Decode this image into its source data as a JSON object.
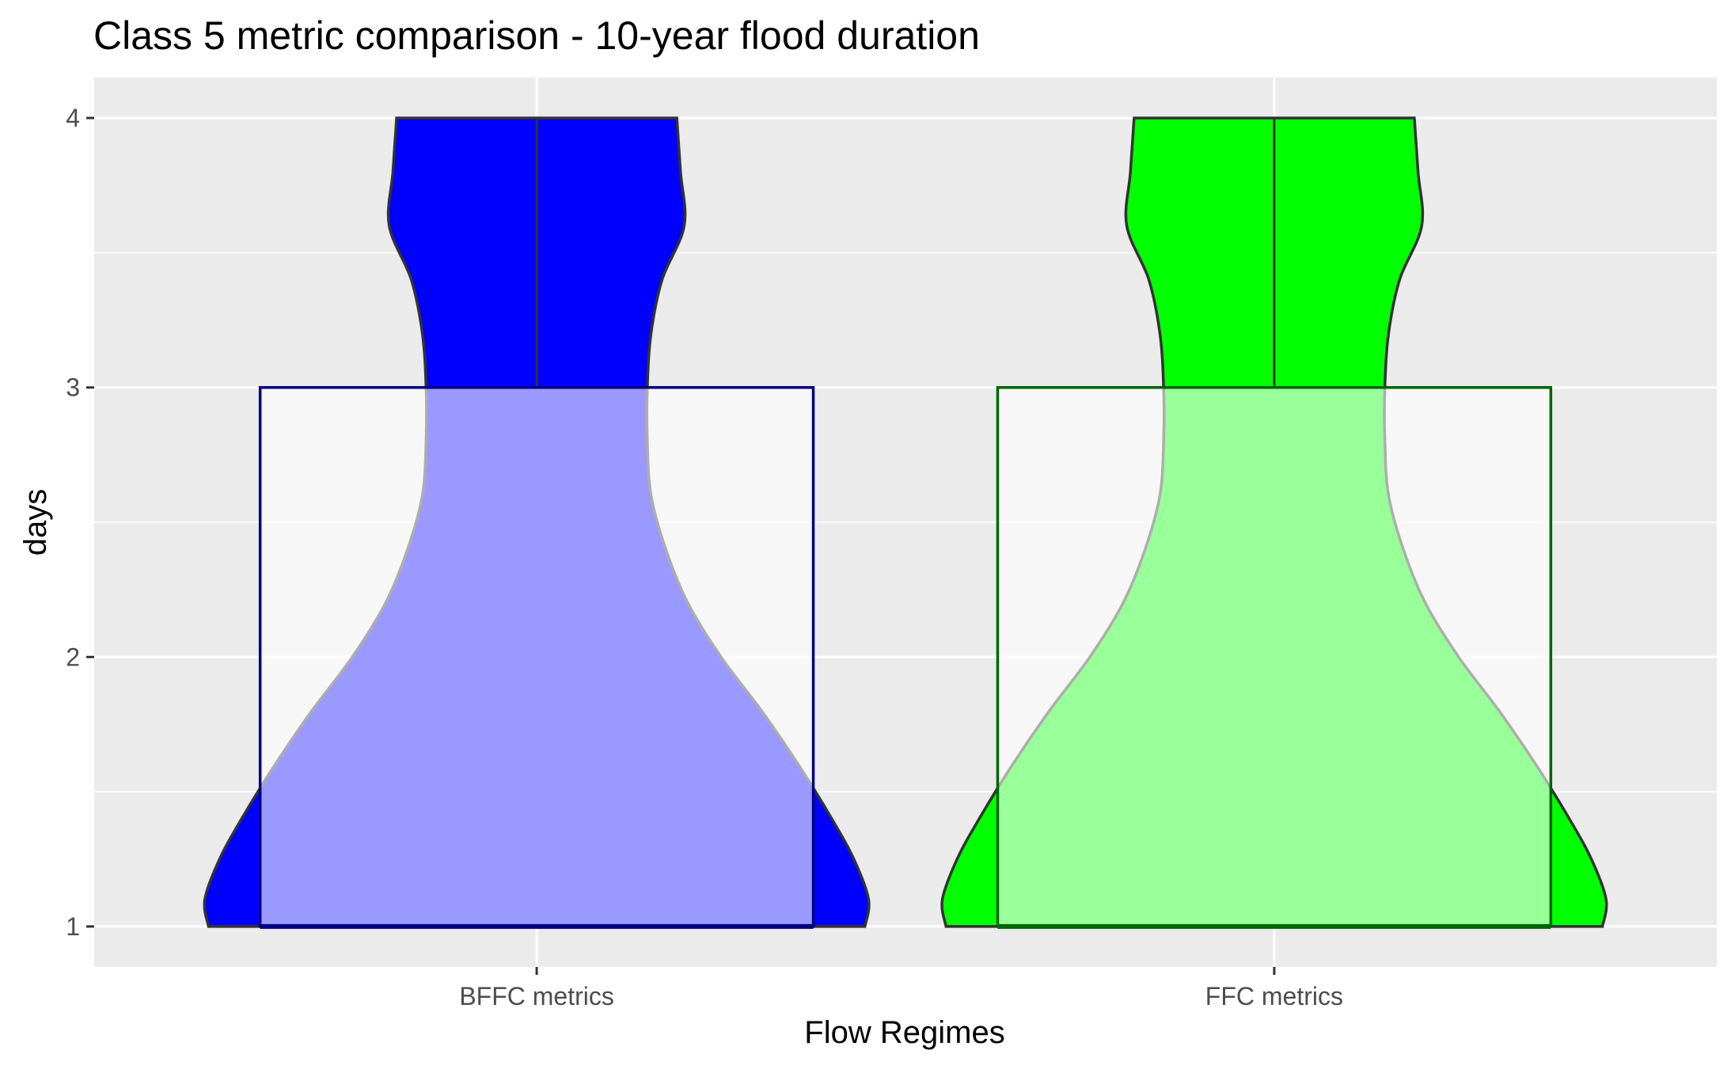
{
  "chart_data": {
    "type": "violin",
    "title": "Class 5 metric comparison - 10-year flood duration",
    "xlabel": "Flow Regimes",
    "ylabel": "days",
    "ylim": [
      0.85,
      4.15
    ],
    "yticks": [
      1,
      2,
      3,
      4
    ],
    "grid": true,
    "legend": "none",
    "categories": [
      "BFFC metrics",
      "FFC metrics"
    ],
    "series": [
      {
        "category": "BFFC metrics",
        "fill": "#0000ff",
        "box_border": "#000080",
        "box": {
          "min": 1,
          "q1": 1,
          "median": 1,
          "q3": 3,
          "max": 4
        },
        "density": [
          {
            "y": 1.0,
            "w": 0.89
          },
          {
            "y": 1.1,
            "w": 0.9
          },
          {
            "y": 1.25,
            "w": 0.86
          },
          {
            "y": 1.4,
            "w": 0.8
          },
          {
            "y": 1.6,
            "w": 0.71
          },
          {
            "y": 1.8,
            "w": 0.61
          },
          {
            "y": 2.0,
            "w": 0.5
          },
          {
            "y": 2.2,
            "w": 0.41
          },
          {
            "y": 2.4,
            "w": 0.35
          },
          {
            "y": 2.6,
            "w": 0.31
          },
          {
            "y": 2.8,
            "w": 0.3
          },
          {
            "y": 3.0,
            "w": 0.3
          },
          {
            "y": 3.2,
            "w": 0.31
          },
          {
            "y": 3.4,
            "w": 0.34
          },
          {
            "y": 3.6,
            "w": 0.4
          },
          {
            "y": 3.8,
            "w": 0.39
          },
          {
            "y": 4.0,
            "w": 0.38
          }
        ]
      },
      {
        "category": "FFC metrics",
        "fill": "#00ff00",
        "box_border": "#006400",
        "box": {
          "min": 1,
          "q1": 1,
          "median": 1,
          "q3": 3,
          "max": 4
        },
        "density": [
          {
            "y": 1.0,
            "w": 0.89
          },
          {
            "y": 1.1,
            "w": 0.9
          },
          {
            "y": 1.25,
            "w": 0.86
          },
          {
            "y": 1.4,
            "w": 0.8
          },
          {
            "y": 1.6,
            "w": 0.71
          },
          {
            "y": 1.8,
            "w": 0.61
          },
          {
            "y": 2.0,
            "w": 0.5
          },
          {
            "y": 2.2,
            "w": 0.41
          },
          {
            "y": 2.4,
            "w": 0.35
          },
          {
            "y": 2.6,
            "w": 0.31
          },
          {
            "y": 2.8,
            "w": 0.3
          },
          {
            "y": 3.0,
            "w": 0.3
          },
          {
            "y": 3.2,
            "w": 0.31
          },
          {
            "y": 3.4,
            "w": 0.34
          },
          {
            "y": 3.6,
            "w": 0.4
          },
          {
            "y": 3.8,
            "w": 0.39
          },
          {
            "y": 4.0,
            "w": 0.38
          }
        ]
      }
    ]
  }
}
